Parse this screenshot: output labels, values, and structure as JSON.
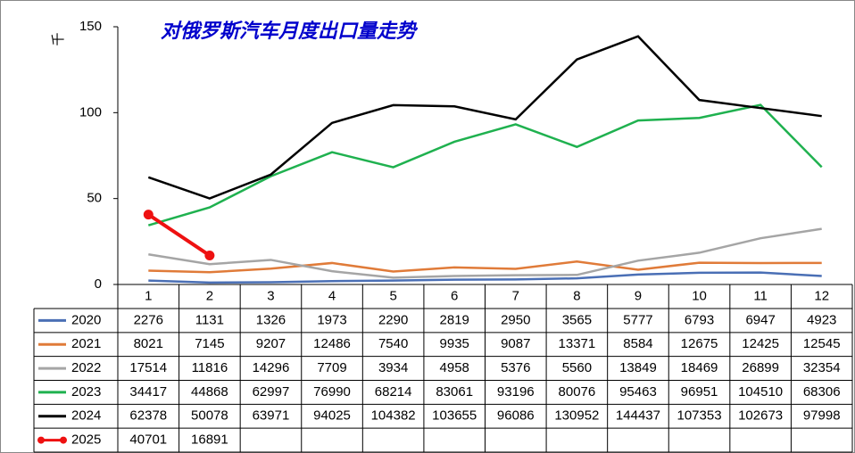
{
  "chart_data": {
    "type": "line",
    "title": "对俄罗斯汽车月度出口量走势",
    "y_label": "千",
    "categories": [
      "1",
      "2",
      "3",
      "4",
      "5",
      "6",
      "7",
      "8",
      "9",
      "10",
      "11",
      "12"
    ],
    "ylim": [
      0,
      150
    ],
    "yticks": [
      0,
      50,
      100,
      150
    ],
    "grid": false,
    "series": [
      {
        "name": "2020",
        "color": "#4a6fb5",
        "values": [
          2.276,
          1.131,
          1.326,
          1.973,
          2.29,
          2.819,
          2.95,
          3.565,
          5.777,
          6.793,
          6.947,
          4.923
        ],
        "value_labels": [
          "2276",
          "1131",
          "1326",
          "1973",
          "2290",
          "2819",
          "2950",
          "3565",
          "5777",
          "6793",
          "6947",
          "4923"
        ]
      },
      {
        "name": "2021",
        "color": "#e07b39",
        "values": [
          8.021,
          7.145,
          9.207,
          12.486,
          7.54,
          9.935,
          9.087,
          13.371,
          8.584,
          12.675,
          12.425,
          12.545
        ],
        "value_labels": [
          "8021",
          "7145",
          "9207",
          "12486",
          "7540",
          "9935",
          "9087",
          "13371",
          "8584",
          "12675",
          "12425",
          "12545"
        ]
      },
      {
        "name": "2022",
        "color": "#a5a5a5",
        "values": [
          17.514,
          11.816,
          14.296,
          7.709,
          3.934,
          4.958,
          5.376,
          5.56,
          13.849,
          18.469,
          26.899,
          32.354
        ],
        "value_labels": [
          "17514",
          "11816",
          "14296",
          "7709",
          "3934",
          "4958",
          "5376",
          "5560",
          "13849",
          "18469",
          "26899",
          "32354"
        ]
      },
      {
        "name": "2023",
        "color": "#1fb14f",
        "values": [
          34.417,
          44.868,
          62.997,
          76.99,
          68.214,
          83.061,
          93.196,
          80.076,
          95.463,
          96.951,
          104.51,
          68.306
        ],
        "value_labels": [
          "34417",
          "44868",
          "62997",
          "76990",
          "68214",
          "83061",
          "93196",
          "80076",
          "95463",
          "96951",
          "104510",
          "68306"
        ]
      },
      {
        "name": "2024",
        "color": "#000000",
        "values": [
          62.378,
          50.078,
          63.971,
          94.025,
          104.382,
          103.655,
          96.086,
          130.952,
          144.437,
          107.353,
          102.673,
          97.998
        ],
        "value_labels": [
          "62378",
          "50078",
          "63971",
          "94025",
          "104382",
          "103655",
          "96086",
          "130952",
          "144437",
          "107353",
          "102673",
          "97998"
        ]
      },
      {
        "name": "2025",
        "color": "#ee1111",
        "markers": true,
        "values": [
          40.701,
          16.891,
          null,
          null,
          null,
          null,
          null,
          null,
          null,
          null,
          null,
          null
        ],
        "value_labels": [
          "40701",
          "16891",
          null,
          null,
          null,
          null,
          null,
          null,
          null,
          null,
          null,
          null
        ]
      }
    ]
  }
}
